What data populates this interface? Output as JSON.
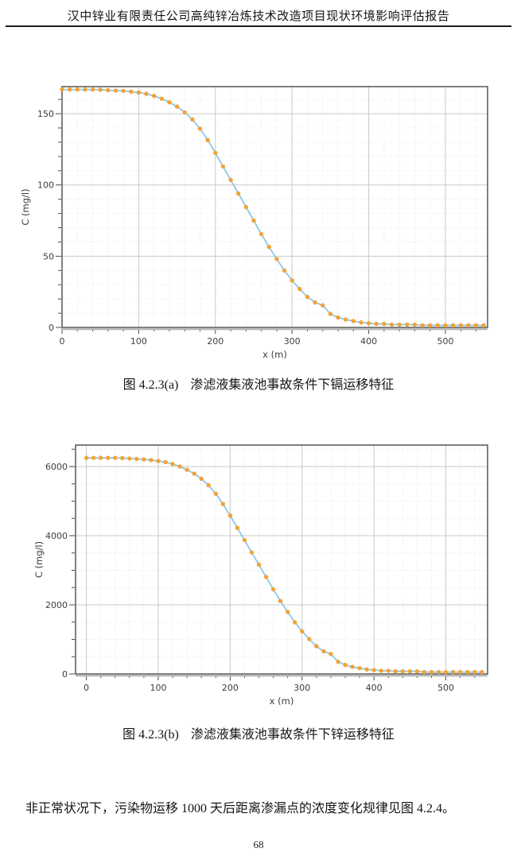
{
  "page": {
    "header_title": "汉中锌业有限责任公司高纯锌冶炼技术改造项目现状环境影响评估报告",
    "body_text": "非正常状况下，污染物运移 1000 天后距离渗漏点的浓度变化规律见图 4.2.4。",
    "page_number": "68"
  },
  "figures": [
    {
      "caption_label": "图 4.2.3(a)",
      "caption_text": "渗滤液集液池事故条件下镉运移特征"
    },
    {
      "caption_label": "图 4.2.3(b)",
      "caption_text": "渗滤液集液池事故条件下锌运移特征"
    }
  ],
  "chart_data": [
    {
      "type": "line",
      "name": "cadmium-transport",
      "xlabel": "x (m)",
      "ylabel": "C (mg/l)",
      "xlim": [
        0,
        555
      ],
      "ylim": [
        0,
        169
      ],
      "xticks": [
        0,
        100,
        200,
        300,
        400,
        500
      ],
      "yticks": [
        0,
        50,
        100,
        150
      ],
      "x_minor_step": 20,
      "y_minor_step": 10,
      "grid": true,
      "legend": "none",
      "line_color": "#8fc7e6",
      "marker_color": "#f2a335",
      "grid_major_color": "#c9c9c9",
      "grid_minor_color": "#e7e7e7",
      "axis_color": "#4a4a4a",
      "x": [
        0,
        10,
        20,
        30,
        40,
        50,
        60,
        70,
        80,
        90,
        100,
        110,
        120,
        130,
        140,
        150,
        160,
        170,
        180,
        190,
        200,
        210,
        220,
        230,
        240,
        250,
        260,
        270,
        280,
        290,
        300,
        310,
        320,
        330,
        340,
        350,
        360,
        370,
        380,
        390,
        400,
        410,
        420,
        430,
        440,
        450,
        460,
        470,
        480,
        490,
        500,
        510,
        520,
        530,
        540,
        550
      ],
      "values": [
        167,
        167,
        167,
        167,
        167,
        166.8,
        166.5,
        166.2,
        166,
        165.5,
        164.8,
        164,
        162.5,
        160.5,
        158,
        155,
        151,
        146,
        139.5,
        131.5,
        122.5,
        113,
        103.5,
        94,
        84.5,
        75,
        65.5,
        56.5,
        48,
        40,
        33,
        27,
        21.5,
        17.5,
        15.5,
        9.5,
        7,
        5.5,
        4.5,
        3.5,
        3,
        2.5,
        2.5,
        2,
        2,
        2,
        2,
        1.5,
        1.5,
        1.5,
        1.5,
        1.5,
        1.5,
        1.5,
        1.5,
        1.5
      ]
    },
    {
      "type": "line",
      "name": "zinc-transport",
      "xlabel": "x (m)",
      "ylabel": "C (mg/l)",
      "xlim": [
        -15,
        558
      ],
      "ylim": [
        0,
        6620
      ],
      "xticks": [
        0,
        100,
        200,
        300,
        400,
        500
      ],
      "yticks": [
        0,
        2000,
        4000,
        6000
      ],
      "x_minor_step": 20,
      "y_minor_step": 500,
      "grid": true,
      "legend": "none",
      "line_color": "#8fc7e6",
      "marker_color": "#f2a335",
      "grid_major_color": "#c9c9c9",
      "grid_minor_color": "#e7e7e7",
      "axis_color": "#4a4a4a",
      "x": [
        0,
        10,
        20,
        30,
        40,
        50,
        60,
        70,
        80,
        90,
        100,
        110,
        120,
        130,
        140,
        150,
        160,
        170,
        180,
        190,
        200,
        210,
        220,
        230,
        240,
        250,
        260,
        270,
        280,
        290,
        300,
        310,
        320,
        330,
        340,
        350,
        360,
        370,
        380,
        390,
        400,
        410,
        420,
        430,
        440,
        450,
        460,
        470,
        480,
        490,
        500,
        510,
        520,
        530,
        540,
        550
      ],
      "values": [
        6250,
        6250,
        6250,
        6250,
        6250,
        6243,
        6232,
        6220,
        6207,
        6188,
        6160,
        6128,
        6073,
        6000,
        5905,
        5795,
        5645,
        5460,
        5215,
        4915,
        4580,
        4225,
        3870,
        3515,
        3160,
        2805,
        2450,
        2110,
        1795,
        1495,
        1235,
        1010,
        805,
        655,
        580,
        355,
        262,
        206,
        168,
        131,
        112,
        94,
        94,
        75,
        75,
        75,
        75,
        56,
        56,
        56,
        56,
        56,
        56,
        56,
        56,
        56
      ]
    }
  ]
}
